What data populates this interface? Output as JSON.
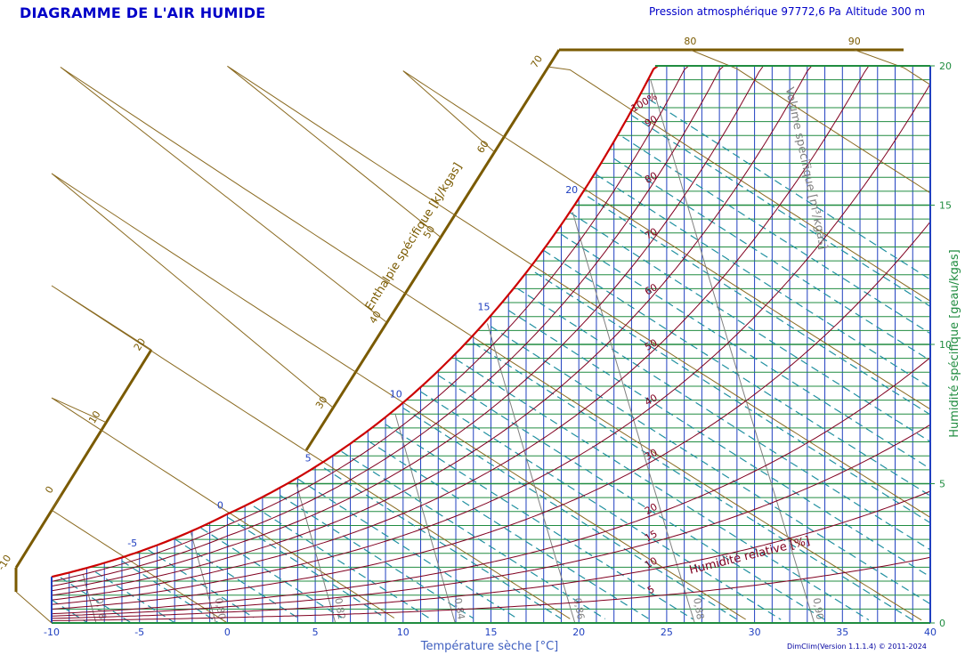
{
  "header": {
    "title": "DIAGRAMME DE L'AIR HUMIDE",
    "pressure": "Pression atmosphérique 97772,6 Pa",
    "altitude": "Altitude 300 m",
    "credit": "DimClim(Version 1.1.1.4) © 2011-2024"
  },
  "chart_data": {
    "type": "psychrometric",
    "xlabel": "Température sèche [°C]",
    "ylabel": "Humidité spécifique [geau/kgas]",
    "enthalpy_label": "Enthalpie spécifique [kJ/kgas]",
    "volume_label": "Volume spécifique [m³/kgas]",
    "rh_label": "Humidité relative [%]",
    "xlim": [
      -10,
      40
    ],
    "ylim": [
      0,
      20
    ],
    "x_ticks": [
      -10,
      -5,
      0,
      5,
      10,
      15,
      20,
      25,
      30,
      35,
      40
    ],
    "y_ticks": [
      0,
      5,
      10,
      15,
      20
    ],
    "pressure_pa": 97772.6,
    "rh_curves": [
      5,
      10,
      15,
      20,
      30,
      40,
      50,
      60,
      70,
      80,
      90,
      100
    ],
    "rh_labels": [
      "5",
      "10",
      "15",
      "20",
      "30",
      "40",
      "50",
      "60",
      "70",
      "80",
      "90",
      "100%"
    ],
    "wet_bulb_labels": [
      "-5",
      "0",
      "5",
      "10",
      "15",
      "20"
    ],
    "enthalpy_scale_left": [
      "-10",
      "0",
      "10",
      "20"
    ],
    "enthalpy_scale_mid": [
      "30",
      "40",
      "50",
      "60",
      "70"
    ],
    "enthalpy_scale_top": [
      "80",
      "90"
    ],
    "volume_labels": [
      "0,76",
      "0,78",
      "0,80",
      "0,82",
      "0,84",
      "0,86",
      "0,88",
      "0,90"
    ],
    "colors": {
      "saturation": "#cc0000",
      "rh": "#800020",
      "grid_temp": "#2040c0",
      "grid_hum": "#208c40",
      "wet_bulb": "#2090a0",
      "enthalpy": "#8a6a20",
      "volume": "#808080",
      "enthalpy_axis": "#7a5a00"
    }
  }
}
